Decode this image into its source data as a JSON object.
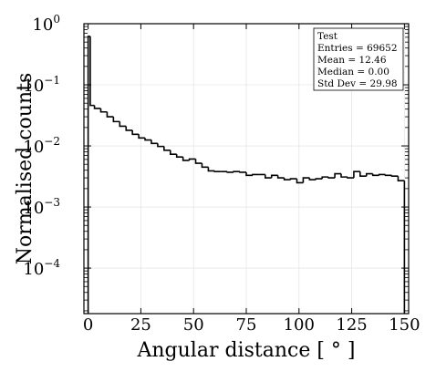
{
  "chart_data": {
    "type": "histogram",
    "xlabel": "Angular distance [ ° ]",
    "ylabel": "Normalised counts",
    "xlim": [
      -2,
      152
    ],
    "ylim": [
      1.8e-05,
      1.0
    ],
    "yscale": "log",
    "grid": true,
    "x_ticks": [
      {
        "value": 0,
        "label": "0"
      },
      {
        "value": 25,
        "label": "25"
      },
      {
        "value": 50,
        "label": "50"
      },
      {
        "value": 75,
        "label": "75"
      },
      {
        "value": 100,
        "label": "100"
      },
      {
        "value": 125,
        "label": "125"
      },
      {
        "value": 150,
        "label": "150"
      }
    ],
    "y_ticks": [
      {
        "value": 1,
        "label": "10",
        "exp": "0"
      },
      {
        "value": 0.1,
        "label": "10",
        "exp": "−1"
      },
      {
        "value": 0.01,
        "label": "10",
        "exp": "−2"
      },
      {
        "value": 0.001,
        "label": "10",
        "exp": "−3"
      },
      {
        "value": 0.0001,
        "label": "10",
        "exp": "−4"
      }
    ],
    "bin_edges": [
      0,
      1,
      3,
      6,
      9,
      12,
      15,
      18,
      21,
      24,
      27,
      30,
      33,
      36,
      39,
      42,
      45,
      48,
      51,
      54,
      57,
      60,
      63,
      66,
      69,
      72,
      75,
      78,
      81,
      84,
      87,
      90,
      93,
      96,
      99,
      102,
      105,
      108,
      111,
      114,
      117,
      120,
      123,
      126,
      129,
      132,
      135,
      138,
      141,
      144,
      147,
      150
    ],
    "values": [
      0.62,
      0.046,
      0.041,
      0.036,
      0.03,
      0.025,
      0.021,
      0.018,
      0.0155,
      0.0135,
      0.0125,
      0.011,
      0.0098,
      0.0085,
      0.0073,
      0.0066,
      0.0058,
      0.0061,
      0.0052,
      0.0045,
      0.0039,
      0.0038,
      0.0038,
      0.0037,
      0.0038,
      0.0037,
      0.0033,
      0.0034,
      0.0034,
      0.003,
      0.0033,
      0.003,
      0.0028,
      0.0029,
      0.0025,
      0.003,
      0.0028,
      0.0029,
      0.0031,
      0.003,
      0.0035,
      0.0031,
      0.003,
      0.0038,
      0.0032,
      0.0035,
      0.0033,
      0.0034,
      0.0033,
      0.0032,
      0.0027
    ],
    "legend_box": {
      "title": "Test",
      "entries": "Entries = 69652",
      "mean": "Mean = 12.46",
      "median": "Median = 0.00",
      "std": "Std Dev = 29.98"
    }
  }
}
